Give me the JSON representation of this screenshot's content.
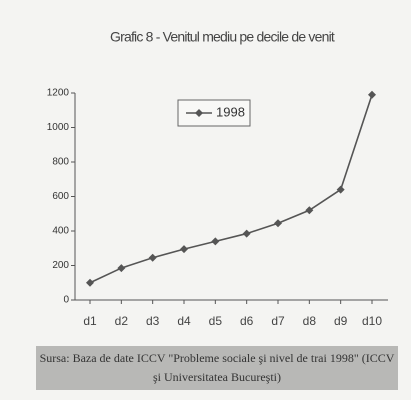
{
  "chart_data": {
    "type": "line",
    "title": "Grafic 8 - Venitul mediu pe decile de venit",
    "categories": [
      "d1",
      "d2",
      "d3",
      "d4",
      "d5",
      "d6",
      "d7",
      "d8",
      "d9",
      "d10"
    ],
    "series": [
      {
        "name": "1998",
        "color": "#555555",
        "values": [
          100,
          185,
          245,
          295,
          340,
          385,
          445,
          520,
          640,
          1190
        ]
      }
    ],
    "ylim": [
      0,
      1200
    ],
    "yticks": [
      0,
      200,
      400,
      600,
      800,
      1000,
      1200
    ],
    "grid": false,
    "source": "Sursa: Baza de date ICCV \"Probleme sociale şi nivel de trai 1998\" (ICCV şi Universitatea Bucureşti)"
  }
}
